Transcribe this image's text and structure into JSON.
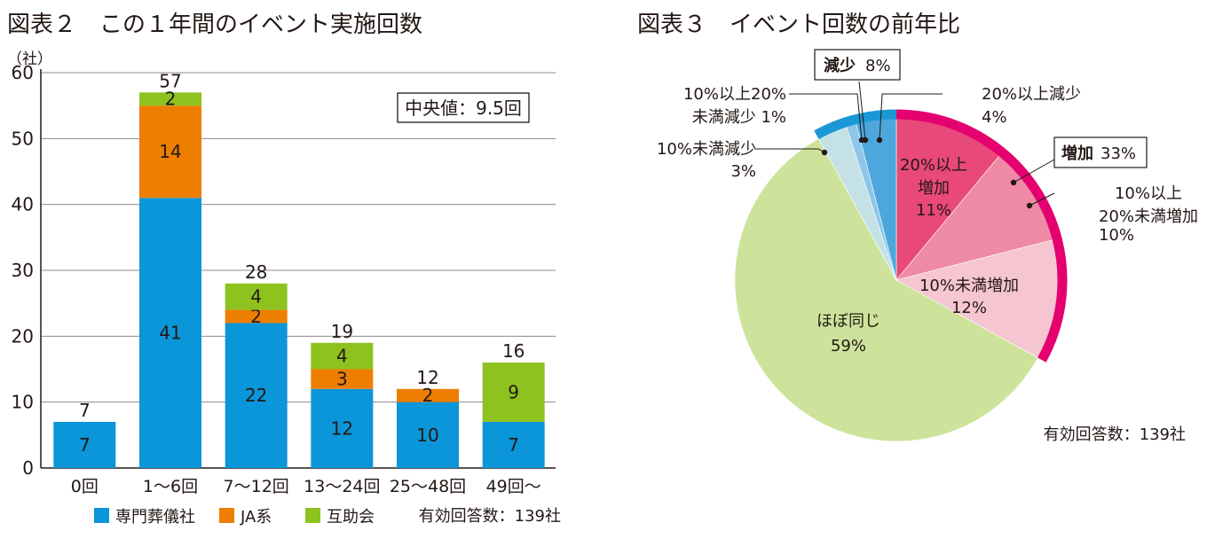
{
  "chart_data": [
    {
      "type": "bar",
      "title": "図表２　この１年間のイベント実施回数",
      "ylabel": "（社）",
      "ylim": [
        0,
        60
      ],
      "yticks": [
        "0",
        "10",
        "20",
        "30",
        "40",
        "50",
        "60"
      ],
      "categories": [
        "0回",
        "1〜6回",
        "7〜12回",
        "13〜24回",
        "25〜48回",
        "49回〜"
      ],
      "series": [
        {
          "name": "専門葬儀社",
          "values": [
            7,
            41,
            22,
            12,
            10,
            7
          ],
          "color": "#0a96d8"
        },
        {
          "name": "JA系",
          "values": [
            0,
            14,
            2,
            3,
            2,
            0
          ],
          "color": "#ee7e00"
        },
        {
          "name": "互助会",
          "values": [
            0,
            2,
            4,
            4,
            0,
            9
          ],
          "color": "#8ec31f"
        }
      ],
      "totals": [
        7,
        57,
        28,
        19,
        12,
        16
      ],
      "median_label": "中央値：9.5回",
      "footnote": "有効回答数：139社",
      "grid": true,
      "stacked": true
    },
    {
      "type": "pie",
      "title": "図表３　イベント回数の前年比",
      "slices": [
        {
          "label": "20%以上増加",
          "value": 11,
          "text": "11%",
          "color": "#e8487a"
        },
        {
          "label": "10%以上20%未満増加",
          "value": 10,
          "text": "10%",
          "color": "#ef8aa6"
        },
        {
          "label": "10%未満増加",
          "value": 12,
          "text": "12%",
          "color": "#f5c5d2"
        },
        {
          "label": "ほぼ同じ",
          "value": 59,
          "text": "59%",
          "color": "#cde39b"
        },
        {
          "label": "10%未満減少",
          "value": 3,
          "text": "3%",
          "color": "#c4e2e6"
        },
        {
          "label": "10%以上20%未満減少",
          "value": 1,
          "text": "1%",
          "color": "#8ec6ea"
        },
        {
          "label": "20%以上減少",
          "value": 4,
          "text": "4%",
          "color": "#4ea7dc"
        }
      ],
      "groups": [
        {
          "label": "増加",
          "value_text": "33%",
          "color": "#e4006e"
        },
        {
          "label": "減少",
          "value_text": "8%",
          "color": "#1a97d5"
        }
      ],
      "footnote": "有効回答数：139社"
    }
  ]
}
